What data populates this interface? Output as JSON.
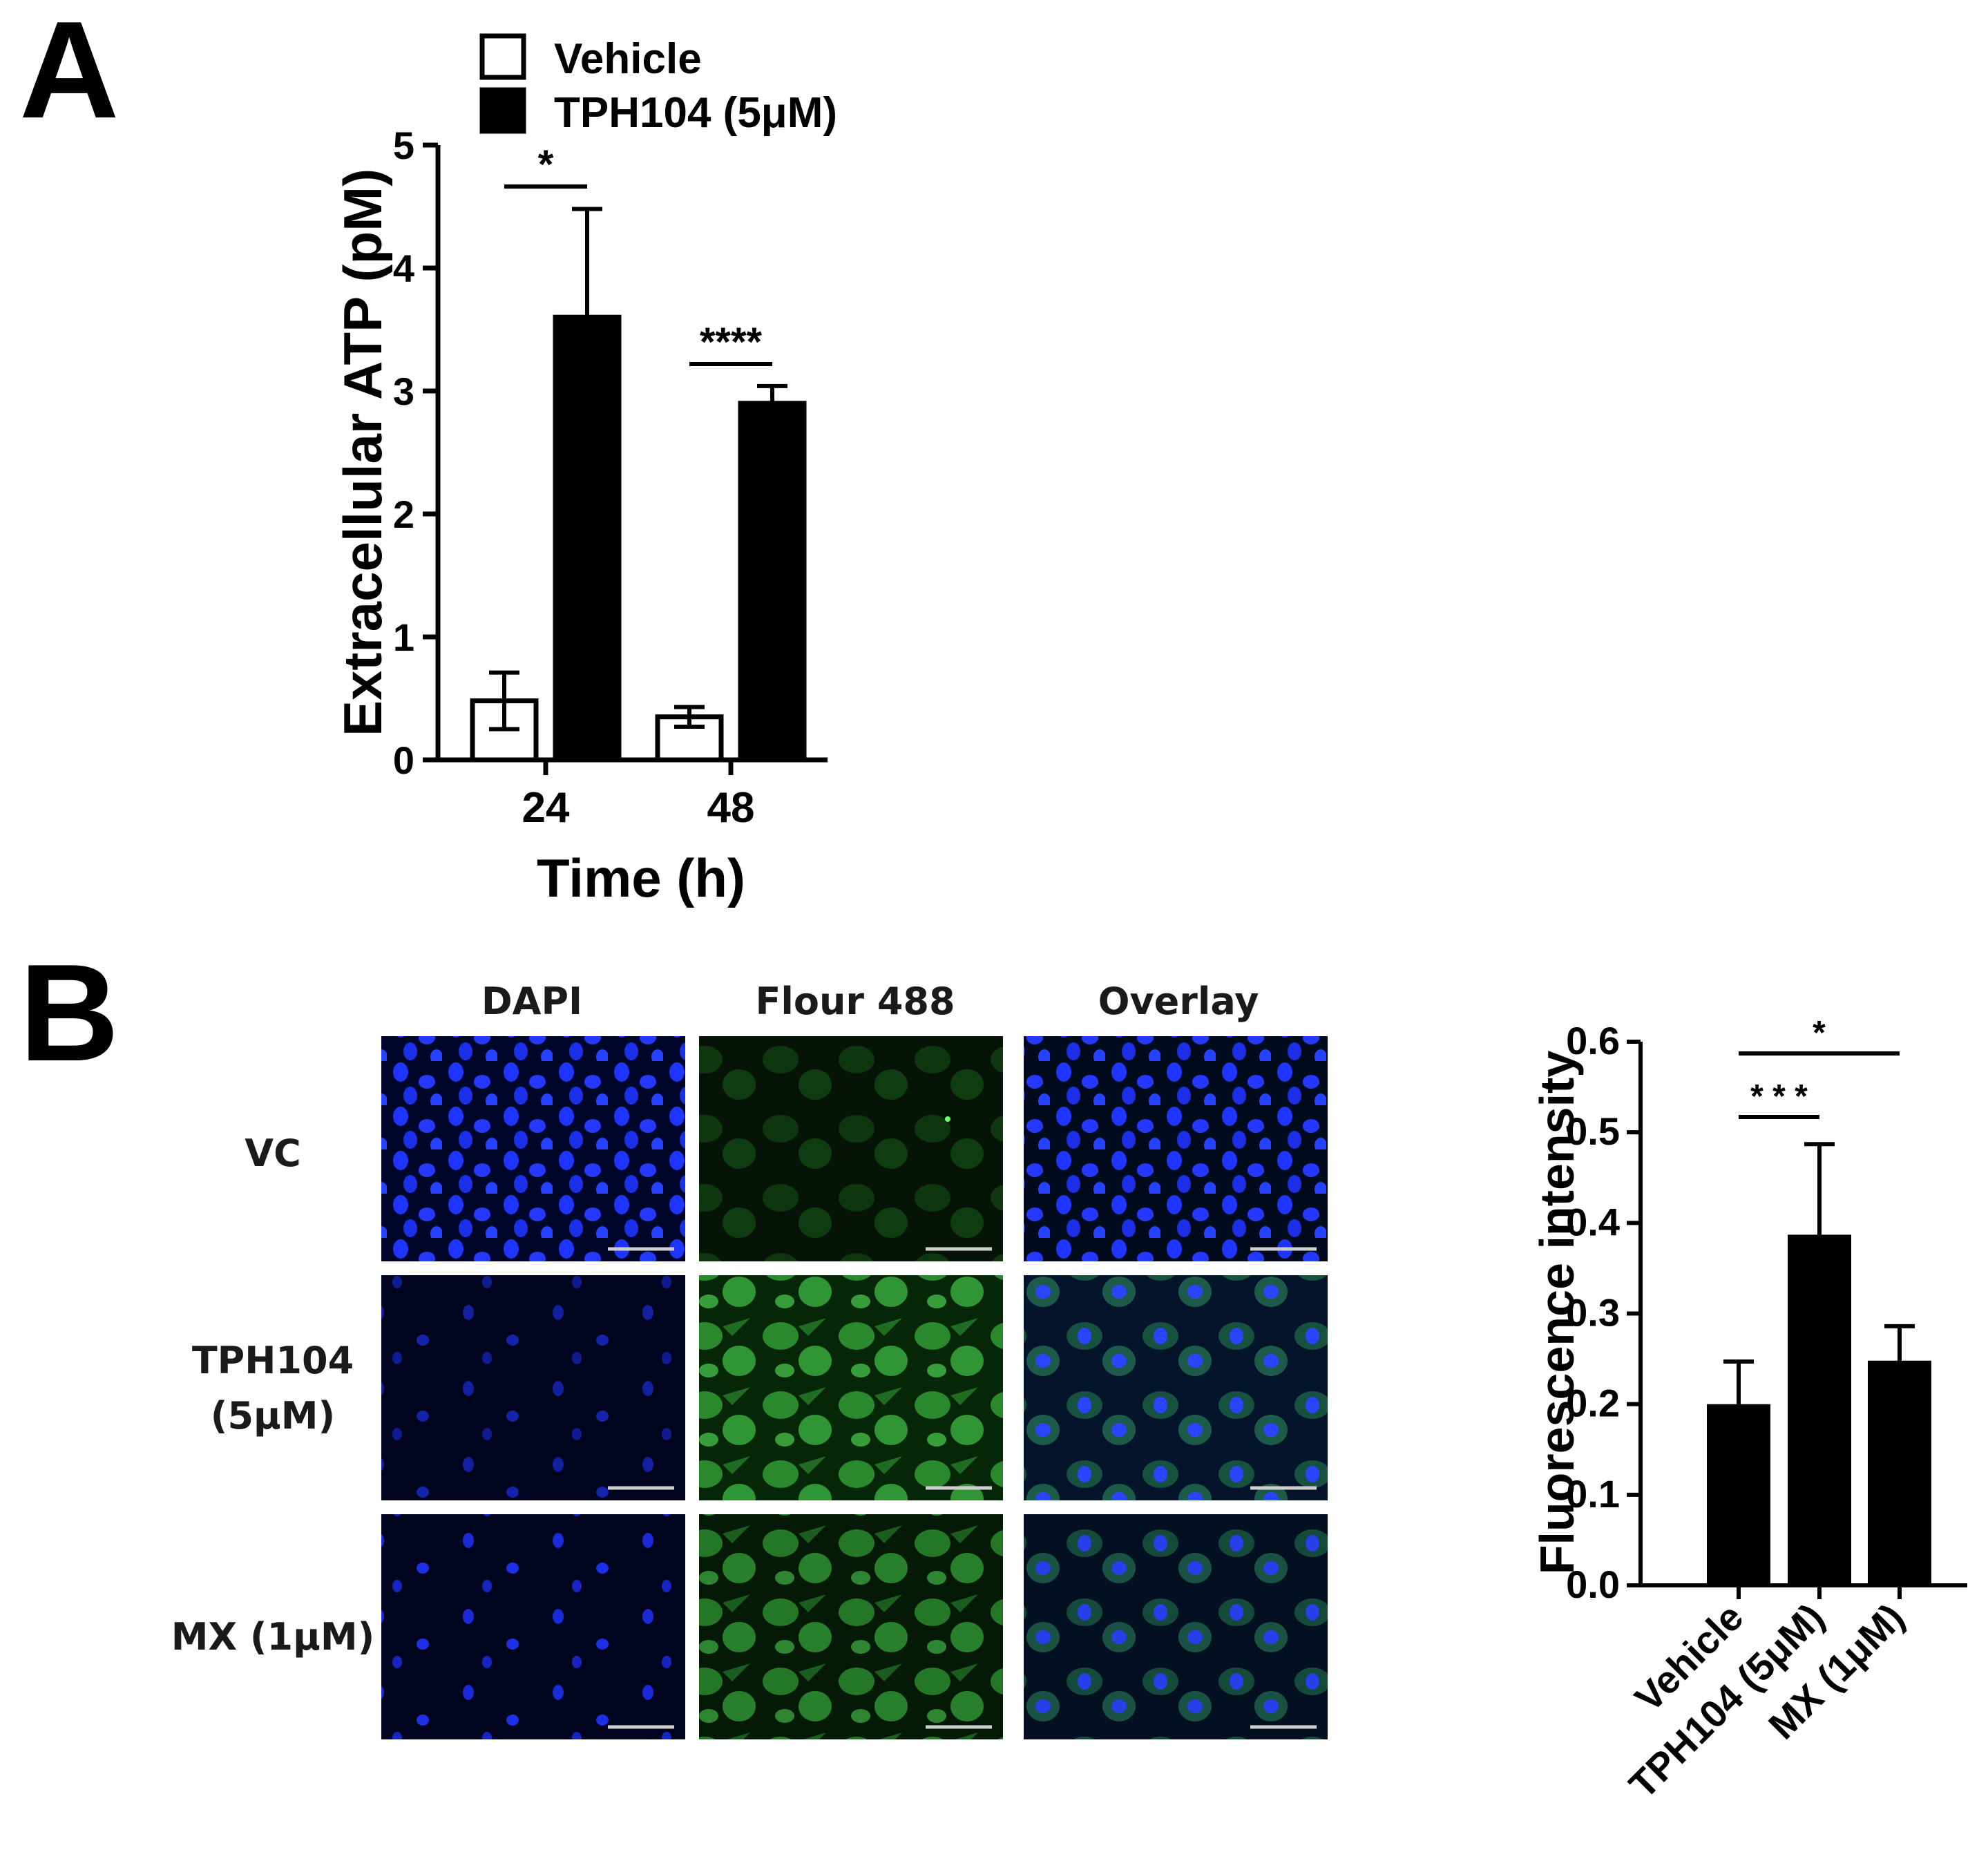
{
  "panels": {
    "a_letter": "A",
    "b_letter": "B"
  },
  "colors": {
    "bar_fill": "#000000",
    "vehicle_fill": "#ffffff",
    "dapi": "#1a2cff",
    "fluor": "#33c23a",
    "micro_bg_dark": "#00062a",
    "micro_bg_green": "#041a06"
  },
  "chart_data": [
    {
      "id": "panel-a",
      "type": "bar",
      "xlabel": "Time (h)",
      "ylabel": "Extracellular ATP (pM)",
      "categories": [
        "24",
        "48"
      ],
      "ylim": [
        0,
        5
      ],
      "yticks": [
        "0",
        "1",
        "2",
        "3",
        "4",
        "5"
      ],
      "legend_position": "top",
      "series": [
        {
          "name": "Vehicle",
          "fill": "white",
          "values": [
            0.48,
            0.35
          ],
          "errors": [
            0.23,
            0.08
          ]
        },
        {
          "name": "TPH104 (5μM)",
          "fill": "black",
          "values": [
            3.6,
            2.9
          ],
          "errors": [
            0.88,
            0.14
          ]
        }
      ],
      "significance": [
        "*",
        "****"
      ]
    },
    {
      "id": "panel-b-bar",
      "type": "bar",
      "xlabel": "",
      "ylabel": "Fluorescence intensity",
      "categories": [
        "Vehicle",
        "TPH104 (5μM)",
        "MX (1μM)"
      ],
      "ylim": [
        0,
        0.6
      ],
      "yticks": [
        "0.0",
        "0.1",
        "0.2",
        "0.3",
        "0.4",
        "0.5",
        "0.6"
      ],
      "series": [
        {
          "name": "",
          "values": [
            0.2,
            0.387,
            0.248
          ],
          "errors": [
            0.047,
            0.1,
            0.038
          ]
        }
      ],
      "significance": [
        {
          "label": "* * *",
          "from": 0,
          "to": 1
        },
        {
          "label": "*",
          "from": 0,
          "to": 2
        }
      ]
    }
  ],
  "microscopy": {
    "columns": [
      "DAPI",
      "Flour 488",
      "Overlay"
    ],
    "rows": [
      "VC",
      "TPH104",
      "(5μM)",
      "MX (1μM)"
    ]
  }
}
